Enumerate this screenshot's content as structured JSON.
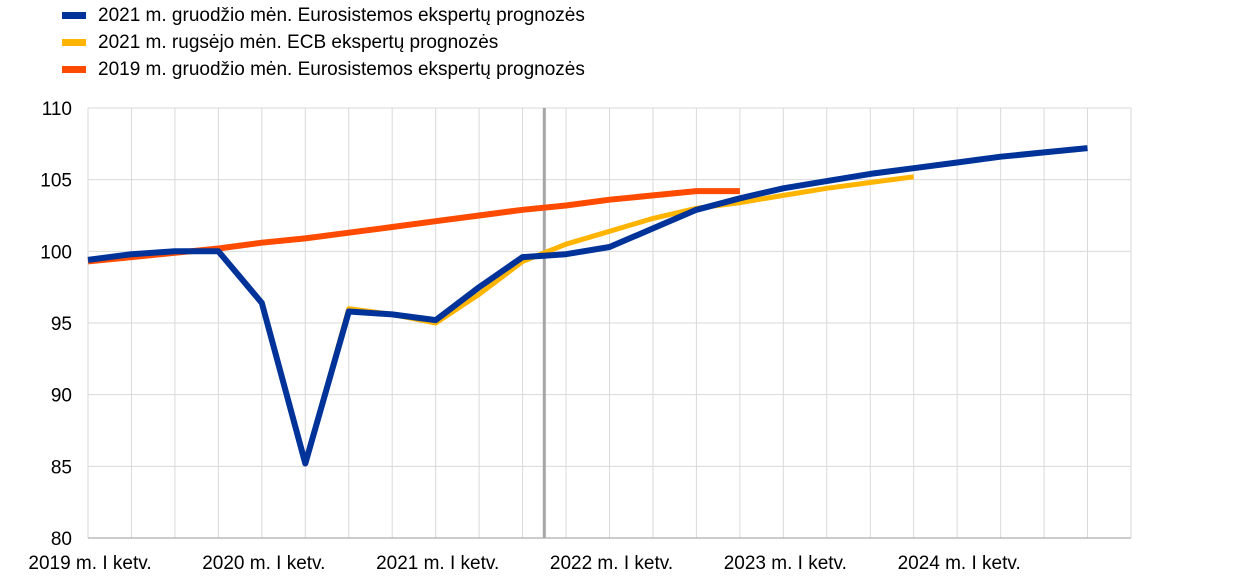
{
  "chart_data": {
    "type": "line",
    "legend_position": "top-left",
    "grid": true,
    "ylim": [
      80,
      110
    ],
    "yticks": [
      "80",
      "85",
      "90",
      "95",
      "100",
      "105",
      "110"
    ],
    "xticks": [
      {
        "label": "2019 m. I ketv.",
        "index": 0
      },
      {
        "label": "2020 m. I ketv.",
        "index": 4
      },
      {
        "label": "2021 m. I ketv.",
        "index": 8
      },
      {
        "label": "2022 m. I ketv.",
        "index": 12
      },
      {
        "label": "2023 m. I ketv.",
        "index": 16
      },
      {
        "label": "2024 m. I ketv.",
        "index": 20
      }
    ],
    "n_quarters": 24,
    "projection_start_index": 10.5,
    "series": [
      {
        "name": "2021 m. gruodžio mėn. Eurosistemos ekspertų prognozės",
        "color": "#003399",
        "width": 6,
        "x": [
          0,
          1,
          2,
          3,
          4,
          5,
          6,
          7,
          8,
          9,
          10,
          11,
          12,
          13,
          14,
          15,
          16,
          17,
          18,
          19,
          20,
          21,
          22,
          23
        ],
        "values": [
          99.4,
          99.8,
          100.0,
          100.0,
          96.4,
          85.2,
          95.8,
          95.6,
          95.2,
          97.5,
          99.6,
          99.8,
          100.3,
          101.6,
          102.9,
          103.7,
          104.4,
          104.9,
          105.4,
          105.8,
          106.2,
          106.6,
          106.9,
          107.2
        ]
      },
      {
        "name": "2021 m. rugsėjo mėn. ECB ekspertų prognozės",
        "color": "#ffb400",
        "width": 5,
        "x": [
          0,
          1,
          2,
          3,
          4,
          5,
          6,
          7,
          8,
          9,
          10,
          11,
          12,
          13,
          14,
          15,
          16,
          17,
          18,
          19
        ],
        "values": [
          99.4,
          99.8,
          100.0,
          100.0,
          96.4,
          85.2,
          96.0,
          95.6,
          95.0,
          97.0,
          99.3,
          100.5,
          101.4,
          102.3,
          103.0,
          103.4,
          103.9,
          104.4,
          104.8,
          105.2
        ]
      },
      {
        "name": "2019 m. gruodžio mėn. Eurosistemos ekspertų prognozės",
        "color": "#ff4b00",
        "width": 6,
        "x": [
          0,
          1,
          2,
          3,
          4,
          5,
          6,
          7,
          8,
          9,
          10,
          11,
          12,
          13,
          14,
          15
        ],
        "values": [
          99.3,
          99.6,
          99.9,
          100.2,
          100.6,
          100.9,
          101.3,
          101.7,
          102.1,
          102.5,
          102.9,
          103.2,
          103.6,
          103.9,
          104.2,
          104.2
        ]
      }
    ]
  }
}
